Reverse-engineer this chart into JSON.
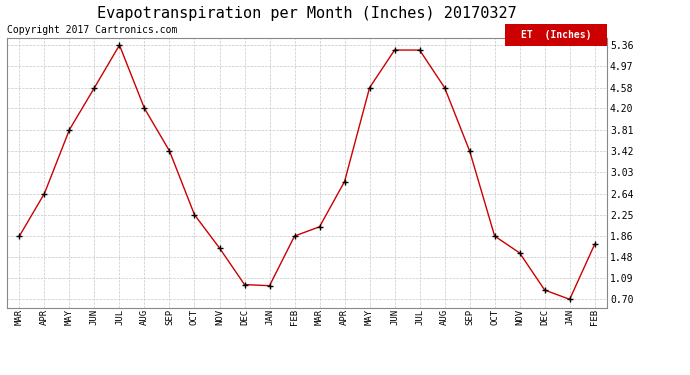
{
  "title": "Evapotranspiration per Month (Inches) 20170327",
  "copyright": "Copyright 2017 Cartronics.com",
  "legend_label": "ET  (Inches)",
  "months": [
    "MAR",
    "APR",
    "MAY",
    "JUN",
    "JUL",
    "AUG",
    "SEP",
    "OCT",
    "NOV",
    "DEC",
    "JAN",
    "FEB",
    "MAR",
    "APR",
    "MAY",
    "JUN",
    "JUL",
    "AUG",
    "SEP",
    "OCT",
    "NOV",
    "DEC",
    "JAN",
    "FEB"
  ],
  "values": [
    1.86,
    2.64,
    3.81,
    4.58,
    5.36,
    4.2,
    3.42,
    2.25,
    1.64,
    0.97,
    0.95,
    1.86,
    2.03,
    2.86,
    4.58,
    5.27,
    5.27,
    4.58,
    3.42,
    1.86,
    1.55,
    0.87,
    0.7,
    1.71
  ],
  "yticks": [
    0.7,
    1.09,
    1.48,
    1.86,
    2.25,
    2.64,
    3.03,
    3.42,
    3.81,
    4.2,
    4.58,
    4.97,
    5.36
  ],
  "ymin": 0.55,
  "ymax": 5.5,
  "line_color": "#cc0000",
  "marker_color": "#000000",
  "background_color": "#ffffff",
  "grid_color": "#c8c8c8",
  "title_fontsize": 11,
  "copyright_fontsize": 7,
  "legend_bg": "#cc0000",
  "legend_text_color": "#ffffff"
}
